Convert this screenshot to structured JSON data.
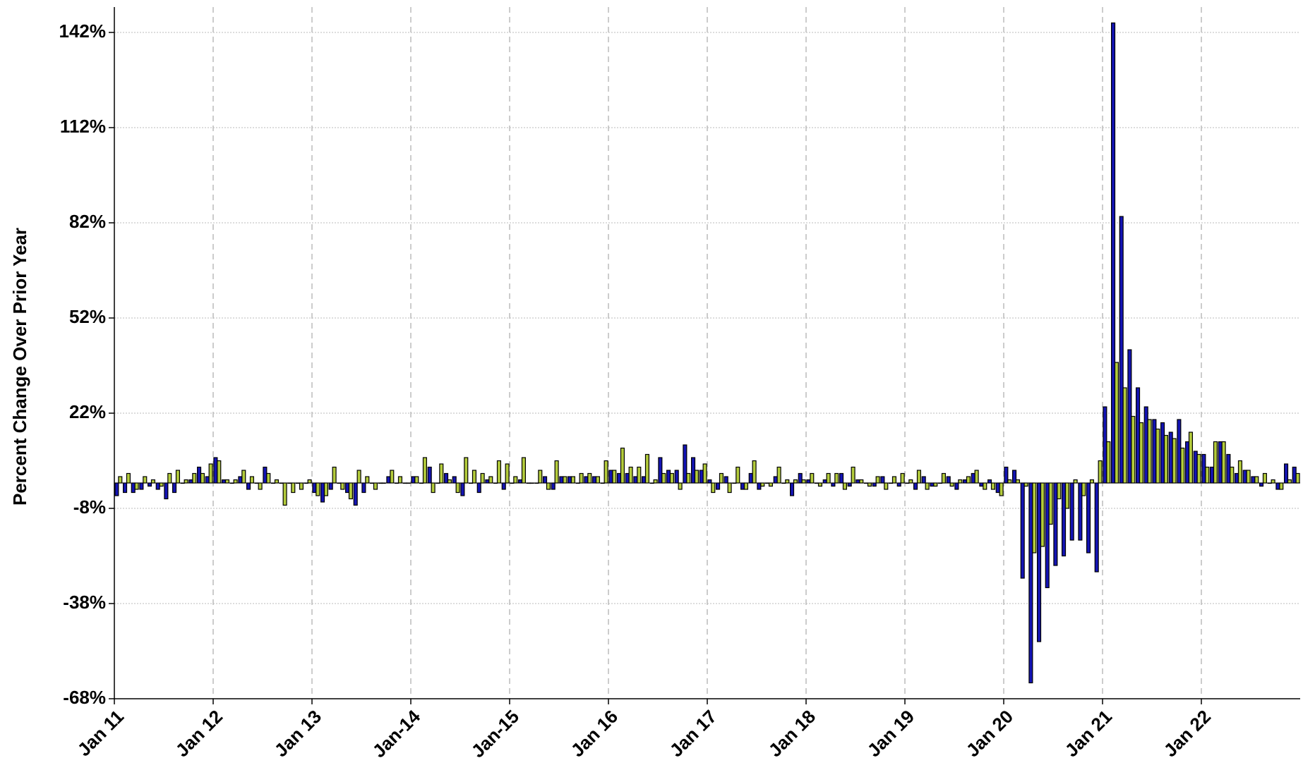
{
  "chart_data": {
    "type": "bar",
    "ylabel": "Percent Change Over Prior Year",
    "categories": [
      "Jan 11",
      null,
      null,
      null,
      null,
      null,
      null,
      null,
      null,
      null,
      null,
      null,
      "Jan 12",
      null,
      null,
      null,
      null,
      null,
      null,
      null,
      null,
      null,
      null,
      null,
      "Jan 13",
      null,
      null,
      null,
      null,
      null,
      null,
      null,
      null,
      null,
      null,
      null,
      "Jan-14",
      null,
      null,
      null,
      null,
      null,
      null,
      null,
      null,
      null,
      null,
      null,
      "Jan-15",
      null,
      null,
      null,
      null,
      null,
      null,
      null,
      null,
      null,
      null,
      null,
      "Jan 16",
      null,
      null,
      null,
      null,
      null,
      null,
      null,
      null,
      null,
      null,
      null,
      "Jan 17",
      null,
      null,
      null,
      null,
      null,
      null,
      null,
      null,
      null,
      null,
      null,
      "Jan 18",
      null,
      null,
      null,
      null,
      null,
      null,
      null,
      null,
      null,
      null,
      null,
      "Jan 19",
      null,
      null,
      null,
      null,
      null,
      null,
      null,
      null,
      null,
      null,
      null,
      "Jan 20",
      null,
      null,
      null,
      null,
      null,
      null,
      null,
      null,
      null,
      null,
      null,
      "Jan 21",
      null,
      null,
      null,
      null,
      null,
      null,
      null,
      null,
      null,
      null,
      null,
      "Jan 22",
      null,
      null,
      null,
      null,
      null,
      null,
      null,
      null,
      null,
      null,
      null
    ],
    "series": [
      {
        "color": "#1414b4",
        "values": [
          -4,
          -3,
          -3,
          -2,
          -1,
          -2,
          -5,
          -3,
          0,
          1,
          5,
          2,
          8,
          1,
          0,
          2,
          -2,
          0,
          5,
          0,
          0,
          0,
          0,
          0,
          -3,
          -6,
          -2,
          0,
          -3,
          -7,
          -3,
          0,
          0,
          2,
          0,
          0,
          2,
          0,
          5,
          0,
          3,
          2,
          -4,
          0,
          -3,
          1,
          0,
          -2,
          0,
          1,
          0,
          0,
          2,
          -2,
          2,
          2,
          0,
          2,
          2,
          0,
          4,
          3,
          3,
          2,
          2,
          0,
          8,
          4,
          4,
          12,
          8,
          4,
          1,
          -2,
          2,
          0,
          -2,
          3,
          -2,
          0,
          2,
          0,
          -4,
          3,
          1,
          0,
          1,
          -1,
          3,
          -1,
          1,
          0,
          -1,
          2,
          0,
          -1,
          0,
          -2,
          2,
          -1,
          0,
          2,
          -2,
          1,
          3,
          -1,
          1,
          -3,
          5,
          4,
          -30,
          -63,
          -50,
          -33,
          -26,
          -23,
          -18,
          -18,
          -22,
          -28,
          24,
          145,
          84,
          42,
          30,
          24,
          20,
          19,
          16,
          20,
          13,
          10,
          9,
          5,
          13,
          9,
          3,
          4,
          2,
          -1,
          0,
          -2,
          6,
          5
        ]
      },
      {
        "color": "#b4cc3c",
        "values": [
          2,
          3,
          -2,
          2,
          1,
          -1,
          3,
          4,
          1,
          3,
          3,
          6,
          7,
          1,
          1,
          4,
          2,
          -2,
          3,
          1,
          -7,
          -3,
          -2,
          1,
          -4,
          -4,
          5,
          -2,
          -5,
          4,
          2,
          -2,
          0,
          4,
          2,
          0,
          2,
          8,
          -3,
          6,
          1,
          -3,
          8,
          4,
          3,
          2,
          7,
          6,
          2,
          8,
          0,
          4,
          -2,
          7,
          2,
          2,
          3,
          3,
          2,
          7,
          4,
          11,
          5,
          5,
          9,
          1,
          3,
          3,
          -2,
          3,
          4,
          6,
          -3,
          3,
          -3,
          5,
          -2,
          7,
          -1,
          -1,
          5,
          1,
          1,
          1,
          3,
          -1,
          3,
          3,
          -2,
          5,
          1,
          -1,
          2,
          -2,
          2,
          3,
          1,
          4,
          -2,
          -1,
          3,
          -1,
          1,
          2,
          4,
          -2,
          -2,
          -4,
          1,
          1,
          -1,
          -22,
          -20,
          -13,
          -5,
          -8,
          1,
          -4,
          1,
          7,
          13,
          38,
          30,
          21,
          19,
          20,
          17,
          15,
          14,
          11,
          16,
          9,
          5,
          13,
          13,
          5,
          7,
          4,
          2,
          3,
          1,
          -2,
          1,
          3
        ]
      }
    ],
    "ylim": [
      -68,
      150
    ],
    "yticks": [
      {
        "value": -68,
        "label": "-68%"
      },
      {
        "value": -38,
        "label": "-38%"
      },
      {
        "value": -8,
        "label": "-8%"
      },
      {
        "value": 22,
        "label": "22%"
      },
      {
        "value": 52,
        "label": "52%"
      },
      {
        "value": 82,
        "label": "82%"
      },
      {
        "value": 112,
        "label": "112%"
      },
      {
        "value": 142,
        "label": "142%"
      }
    ],
    "grid": true,
    "xgrid": true
  }
}
